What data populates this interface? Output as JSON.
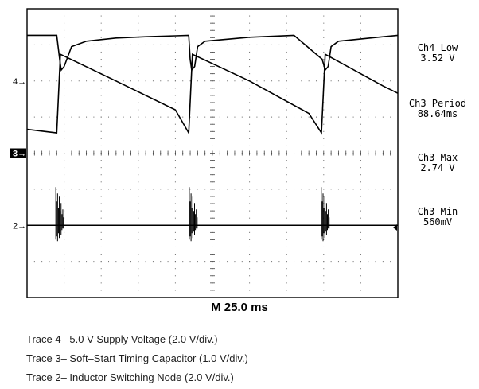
{
  "chart_data": {
    "type": "line",
    "title": "",
    "xlabel": "",
    "ylabel": "",
    "timebase": "M 25.0 ms",
    "ms_per_div": 25.0,
    "grid": true,
    "channel_markers": [
      "4",
      "3",
      "2"
    ],
    "series": [
      {
        "name": "Trace 4",
        "volts_per_div": 2.0,
        "ground_div": 2.0,
        "x": [
          0,
          20,
          22,
          23,
          25,
          30,
          40,
          60,
          80,
          100,
          109,
          110,
          111,
          113,
          115,
          120,
          150,
          180,
          199,
          201,
          203,
          205,
          210,
          240,
          250
        ],
        "y": [
          2.53,
          2.53,
          1.2,
          0.6,
          0.8,
          1.9,
          2.2,
          2.38,
          2.45,
          2.5,
          2.53,
          1.2,
          0.6,
          0.8,
          1.9,
          2.2,
          2.42,
          2.53,
          1.2,
          0.6,
          0.8,
          1.9,
          2.2,
          2.45,
          2.53
        ]
      },
      {
        "name": "Trace 3",
        "volts_per_div": 1.0,
        "ground_div": 0,
        "x": [
          0,
          20,
          22.5,
          60,
          100,
          109,
          111.5,
          150,
          190,
          198.5,
          201,
          240,
          250
        ],
        "y": [
          0.66,
          0.56,
          2.74,
          2.0,
          1.2,
          0.56,
          2.74,
          2.0,
          1.1,
          0.56,
          2.74,
          1.86,
          1.66
        ]
      },
      {
        "name": "Trace 2",
        "volts_per_div": 2.0,
        "ground_div": -2.0,
        "burst_times": [
          21,
          111,
          200
        ],
        "baseline": 0
      }
    ]
  },
  "measurements": [
    {
      "label": "Ch4 Low",
      "value": "3.52 V"
    },
    {
      "label": "Ch3 Period",
      "value": "88.64ms"
    },
    {
      "label": "Ch3 Max",
      "value": "2.74 V"
    },
    {
      "label": "Ch3 Min",
      "value": "560mV"
    }
  ],
  "captions": [
    "Trace 4– 5.0 V Supply Voltage (2.0 V/div.)",
    "Trace 3– Soft–Start Timing Capacitor (1.0 V/div.)",
    "Trace 2– Inductor Switching Node (2.0 V/div.)"
  ],
  "colors": {
    "trace": "#000000",
    "grid": "#555555",
    "background": "#ffffff"
  }
}
